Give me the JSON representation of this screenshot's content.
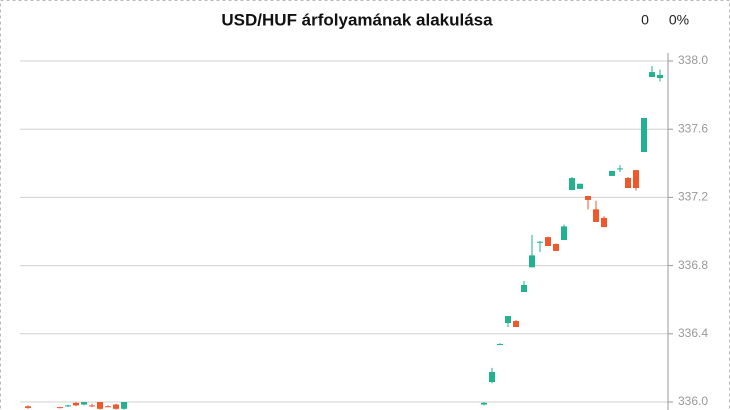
{
  "chart_data": {
    "type": "candlestick",
    "title": "USD/HUF árfolyamának alakulása",
    "change_labels": [
      "0",
      "0%"
    ],
    "up_color": "#22b28f",
    "down_color": "#f0582c",
    "ylim": [
      336,
      338
    ],
    "yticks": [
      {
        "value": 336,
        "label": "336.0"
      },
      336.4,
      336.8,
      337.2,
      337.6,
      {
        "value": 338,
        "label": "338.0"
      }
    ],
    "grid": true,
    "axis_side": "right",
    "categories": [
      null,
      null,
      null,
      null,
      null,
      null,
      null,
      null,
      null,
      null,
      null,
      null,
      null,
      null,
      null,
      null,
      null,
      null,
      null,
      null,
      null,
      null,
      null,
      null,
      null,
      null,
      null,
      null,
      null,
      null,
      null,
      null,
      null,
      null,
      null,
      null,
      null,
      null,
      null,
      null,
      null,
      null,
      null,
      null,
      null,
      null,
      null,
      null,
      null,
      null,
      null,
      null,
      null,
      null,
      null,
      null,
      null,
      null,
      null,
      null,
      null,
      null,
      null,
      null,
      null,
      null,
      null,
      null,
      null,
      null,
      null,
      null,
      null,
      null,
      null,
      null,
      null,
      null,
      null,
      null
    ],
    "open": [
      335.975,
      null,
      null,
      null,
      335.97,
      335.975,
      335.995,
      335.985,
      335.98,
      336.0,
      335.975,
      335.985,
      335.96,
      null,
      null,
      null,
      null,
      null,
      null,
      null,
      null,
      null,
      null,
      null,
      null,
      null,
      null,
      null,
      null,
      null,
      null,
      null,
      null,
      null,
      null,
      null,
      null,
      null,
      null,
      null,
      null,
      null,
      null,
      null,
      null,
      null,
      null,
      null,
      null,
      null,
      null,
      null,
      null,
      null,
      null,
      null,
      null,
      335.985,
      336.117,
      336.34,
      336.463,
      336.475,
      336.645,
      336.79,
      336.935,
      336.967,
      336.927,
      336.95,
      337.243,
      337.25,
      337.208,
      337.13,
      337.08,
      337.326,
      337.37,
      337.314,
      337.36,
      337.466,
      337.906,
      337.9
    ],
    "high": [
      335.98,
      null,
      null,
      null,
      335.972,
      335.985,
      336.0,
      336.0,
      335.99,
      336.0,
      335.98,
      335.99,
      336.0,
      null,
      null,
      null,
      null,
      null,
      null,
      null,
      null,
      null,
      null,
      null,
      null,
      null,
      null,
      null,
      null,
      null,
      null,
      null,
      null,
      null,
      null,
      null,
      null,
      null,
      null,
      null,
      null,
      null,
      null,
      null,
      null,
      null,
      null,
      null,
      null,
      null,
      null,
      null,
      null,
      null,
      null,
      null,
      null,
      336.0,
      336.2,
      336.345,
      336.504,
      336.48,
      336.71,
      336.98,
      336.945,
      336.97,
      336.93,
      337.04,
      337.32,
      337.28,
      337.21,
      337.18,
      337.09,
      337.355,
      337.39,
      337.32,
      337.36,
      337.666,
      337.97,
      337.95
    ],
    "low": [
      335.96,
      null,
      null,
      null,
      335.962,
      335.97,
      335.975,
      335.98,
      335.97,
      335.955,
      335.97,
      335.955,
      335.955,
      null,
      null,
      null,
      null,
      null,
      null,
      null,
      null,
      null,
      null,
      null,
      null,
      null,
      null,
      null,
      null,
      null,
      null,
      null,
      null,
      null,
      null,
      null,
      null,
      null,
      null,
      null,
      null,
      null,
      null,
      null,
      null,
      null,
      null,
      null,
      null,
      null,
      null,
      null,
      null,
      null,
      null,
      null,
      null,
      335.98,
      336.11,
      336.335,
      336.44,
      336.44,
      336.645,
      336.79,
      336.88,
      336.915,
      336.886,
      336.95,
      337.243,
      337.25,
      337.13,
      337.056,
      337.026,
      337.326,
      337.35,
      337.255,
      337.24,
      337.466,
      337.906,
      337.88
    ],
    "close": [
      335.965,
      null,
      null,
      null,
      335.965,
      335.98,
      335.98,
      336.0,
      335.975,
      335.96,
      335.972,
      335.96,
      336.0,
      null,
      null,
      null,
      null,
      null,
      null,
      null,
      null,
      null,
      null,
      null,
      null,
      null,
      null,
      null,
      null,
      null,
      null,
      null,
      null,
      null,
      null,
      null,
      null,
      null,
      null,
      null,
      null,
      null,
      null,
      null,
      null,
      null,
      null,
      null,
      null,
      null,
      null,
      null,
      null,
      null,
      null,
      null,
      null,
      335.995,
      336.176,
      336.34,
      336.504,
      336.44,
      336.686,
      336.86,
      336.94,
      336.915,
      336.886,
      337.03,
      337.313,
      337.28,
      337.185,
      337.056,
      337.026,
      337.355,
      337.37,
      337.255,
      337.255,
      337.666,
      337.935,
      337.918
    ]
  }
}
